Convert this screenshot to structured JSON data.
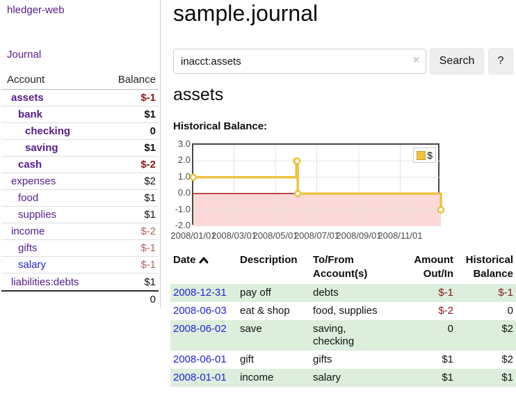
{
  "sidebar": {
    "brand": "hledger-web",
    "nav": {
      "journal": "Journal"
    },
    "accounts_table": {
      "headers": {
        "account": "Account",
        "balance": "Balance"
      },
      "rows": [
        {
          "account": "assets",
          "indent": 1,
          "bold": true,
          "balance": "$-1",
          "balance_tone": "negative-strong",
          "link_color": "visited"
        },
        {
          "account": "bank",
          "indent": 2,
          "bold": true,
          "balance": "$1",
          "balance_tone": "normal",
          "link_color": "visited"
        },
        {
          "account": "checking",
          "indent": 3,
          "bold": true,
          "balance": "0",
          "balance_tone": "normal",
          "link_color": "visited"
        },
        {
          "account": "saving",
          "indent": 3,
          "bold": true,
          "balance": "$1",
          "balance_tone": "normal",
          "link_color": "visited"
        },
        {
          "account": "cash",
          "indent": 2,
          "bold": true,
          "balance": "$-2",
          "balance_tone": "negative-strong",
          "link_color": "visited"
        },
        {
          "account": "expenses",
          "indent": 1,
          "bold": false,
          "balance": "$2",
          "balance_tone": "normal",
          "link_color": "visited"
        },
        {
          "account": "food",
          "indent": 2,
          "bold": false,
          "balance": "$1",
          "balance_tone": "normal",
          "link_color": "visited"
        },
        {
          "account": "supplies",
          "indent": 2,
          "bold": false,
          "balance": "$1",
          "balance_tone": "normal",
          "link_color": "visited"
        },
        {
          "account": "income",
          "indent": 1,
          "bold": false,
          "balance": "$-2",
          "balance_tone": "negative-soft",
          "link_color": "visited"
        },
        {
          "account": "gifts",
          "indent": 2,
          "bold": false,
          "balance": "$-1",
          "balance_tone": "negative-soft",
          "link_color": "visited"
        },
        {
          "account": "salary",
          "indent": 2,
          "bold": false,
          "balance": "$-1",
          "balance_tone": "negative-soft",
          "link_color": "unvisited"
        },
        {
          "account": "liabilities:debts",
          "indent": 1,
          "bold": false,
          "balance": "$1",
          "balance_tone": "normal",
          "link_color": "visited"
        }
      ],
      "total": "0"
    }
  },
  "header": {
    "title": "sample.journal"
  },
  "search": {
    "value": "inacct:assets",
    "clear_icon": "×",
    "button": "Search",
    "help_button": "?"
  },
  "account_page": {
    "heading": "assets",
    "chart_label": "Historical Balance:"
  },
  "chart_data": {
    "type": "line",
    "step": true,
    "title": "Historical Balance:",
    "series": [
      {
        "name": "$",
        "dates": [
          "2008-01-01",
          "2008-06-01",
          "2008-06-02",
          "2008-06-03",
          "2008-12-31"
        ],
        "x_days": [
          0,
          152,
          153,
          154,
          365
        ],
        "values": [
          1,
          2,
          2,
          0,
          -1
        ]
      }
    ],
    "x_ticks": [
      {
        "label": "2008/01/01",
        "day": 0
      },
      {
        "label": "2008/03/01",
        "day": 60
      },
      {
        "label": "2008/05/01",
        "day": 121
      },
      {
        "label": "2008/07/01",
        "day": 182
      },
      {
        "label": "2008/09/01",
        "day": 244
      },
      {
        "label": "2008/11/01",
        "day": 305
      }
    ],
    "y_ticks": [
      "3.0",
      "2.0",
      "1.0",
      "0.0",
      "-1.0",
      "-2.0"
    ],
    "ylim": [
      -2,
      3
    ],
    "xlim_days": [
      0,
      365
    ],
    "legend_position": "top-right",
    "grid": true,
    "colors": {
      "series": "#edc240",
      "marker_fill": "#ffffff",
      "negative_region": "#fbd9d9",
      "zero_line": "#a40000",
      "grid": "#e3e3e3",
      "border": "#474747"
    }
  },
  "transactions": {
    "headers": {
      "date": "Date",
      "description": "Description",
      "accounts": "To/From Account(s)",
      "amount": "Amount Out/In",
      "balance": "Historical Balance"
    },
    "rows": [
      {
        "date": "2008-12-31",
        "description": "pay off",
        "accounts": "debts",
        "amount": "$-1",
        "amount_negative": true,
        "balance": "$-1",
        "balance_negative": true,
        "striped": true
      },
      {
        "date": "2008-06-03",
        "description": "eat & shop",
        "accounts": "food, supplies",
        "amount": "$-2",
        "amount_negative": true,
        "balance": "0",
        "balance_negative": false,
        "striped": false
      },
      {
        "date": "2008-06-02",
        "description": "save",
        "accounts": "saving,\nchecking",
        "amount": "0",
        "amount_negative": false,
        "balance": "$2",
        "balance_negative": false,
        "striped": true
      },
      {
        "date": "2008-06-01",
        "description": "gift",
        "accounts": "gifts",
        "amount": "$1",
        "amount_negative": false,
        "balance": "$2",
        "balance_negative": false,
        "striped": false
      },
      {
        "date": "2008-01-01",
        "description": "income",
        "accounts": "salary",
        "amount": "$1",
        "amount_negative": false,
        "balance": "$1",
        "balance_negative": false,
        "striped": true
      }
    ]
  },
  "colors": {
    "link_visited": "#551a8b",
    "link_unvisited": "#2222dd",
    "negative_strong": "#8b1414",
    "negative_soft": "#b2615f",
    "row_stripe_green": "#ddeedd",
    "button_bg": "#eeeeee"
  }
}
